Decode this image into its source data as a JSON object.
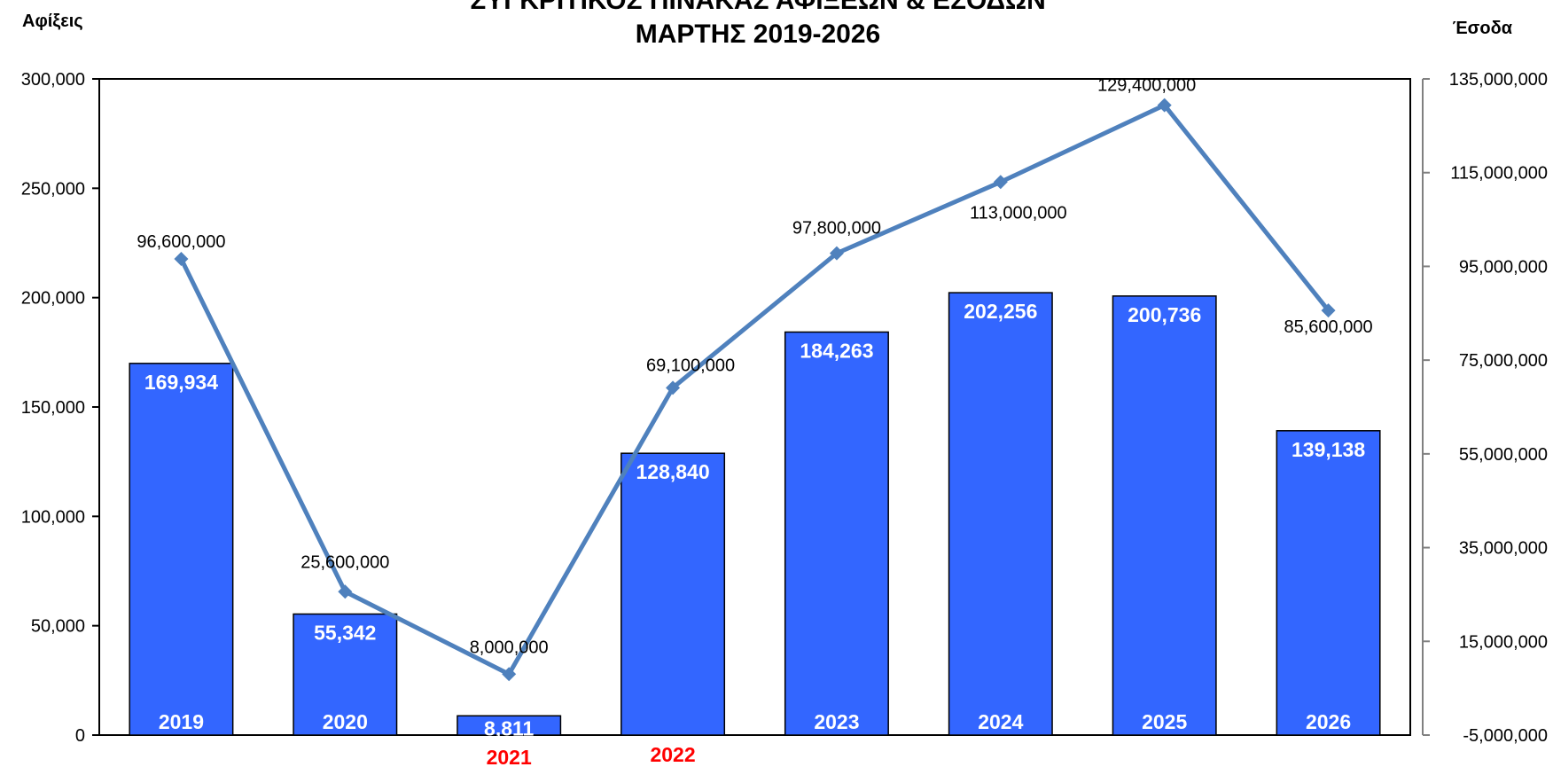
{
  "chart_data": {
    "type": "bar+line",
    "title_lines": [
      "ΣΥΓΚΡΙΤΙΚΟΣ ΠΙΝΑΚΑΣ ΑΦΙΞΕΩΝ & ΕΣΟΔΩΝ",
      "ΜΑΡΤΗΣ 2019-2026"
    ],
    "y_left_label": "Αφίξεις",
    "y_right_label": "Έσοδα",
    "y_left_ticks": [
      "0",
      "50,000",
      "100,000",
      "150,000",
      "200,000",
      "250,000",
      "300,000"
    ],
    "y_left_range": [
      0,
      300000
    ],
    "y_right_ticks": [
      "-5,000,000",
      "15,000,000",
      "35,000,000",
      "55,000,000",
      "75,000,000",
      "95,000,000",
      "115,000,000",
      "135,000,000"
    ],
    "y_right_range": [
      -5000000,
      135000000
    ],
    "categories": [
      "2019",
      "2020",
      "2021",
      "2022",
      "2023",
      "2024",
      "2025",
      "2026"
    ],
    "category_label_colors": [
      "#ffffff",
      "#ffffff",
      "#ff0000",
      "#ff0000",
      "#ffffff",
      "#ffffff",
      "#ffffff",
      "#ffffff"
    ],
    "arrivals": {
      "values": [
        169934,
        55342,
        8811,
        128840,
        184263,
        202256,
        200736,
        139138
      ],
      "labels": [
        "169,934",
        "55,342",
        "8,811",
        "128,840",
        "184,263",
        "202,256",
        "200,736",
        "139,138"
      ],
      "color": "#3366ff"
    },
    "revenue": {
      "values": [
        96600000,
        25600000,
        8000000,
        69100000,
        97800000,
        113000000,
        129400000,
        85600000
      ],
      "labels": [
        "96,600,000",
        "25,600,000",
        "8,000,000",
        "69,100,000",
        "97,800,000",
        "113,000,000",
        "129,400,000",
        "85,600,000"
      ],
      "color": "#4f81bd"
    },
    "grid": false
  }
}
